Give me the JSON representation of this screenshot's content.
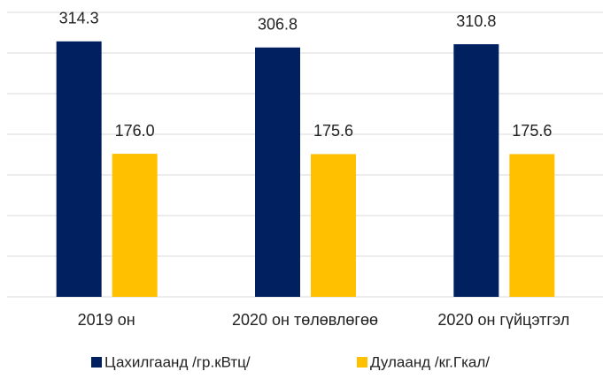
{
  "chart_data": {
    "type": "bar",
    "categories": [
      "2019 он",
      "2020 он төлөвлөгөө",
      "2020 он гүйцэтгэл"
    ],
    "series": [
      {
        "name": "Цахилгаанд /гр.кВтц/",
        "color": "#002060",
        "values": [
          314.3,
          306.8,
          310.8
        ]
      },
      {
        "name": "Дулаанд /кг.Гкал/",
        "color": "#ffc000",
        "values": [
          176.0,
          175.6,
          175.6
        ],
        "value_labels": [
          "176.0",
          "175.6",
          "175.6"
        ]
      }
    ],
    "ylim": [
      0,
      350
    ],
    "yticks": [
      0,
      50,
      100,
      150,
      200,
      250,
      300,
      350
    ],
    "grid": true,
    "legend": "bottom"
  }
}
